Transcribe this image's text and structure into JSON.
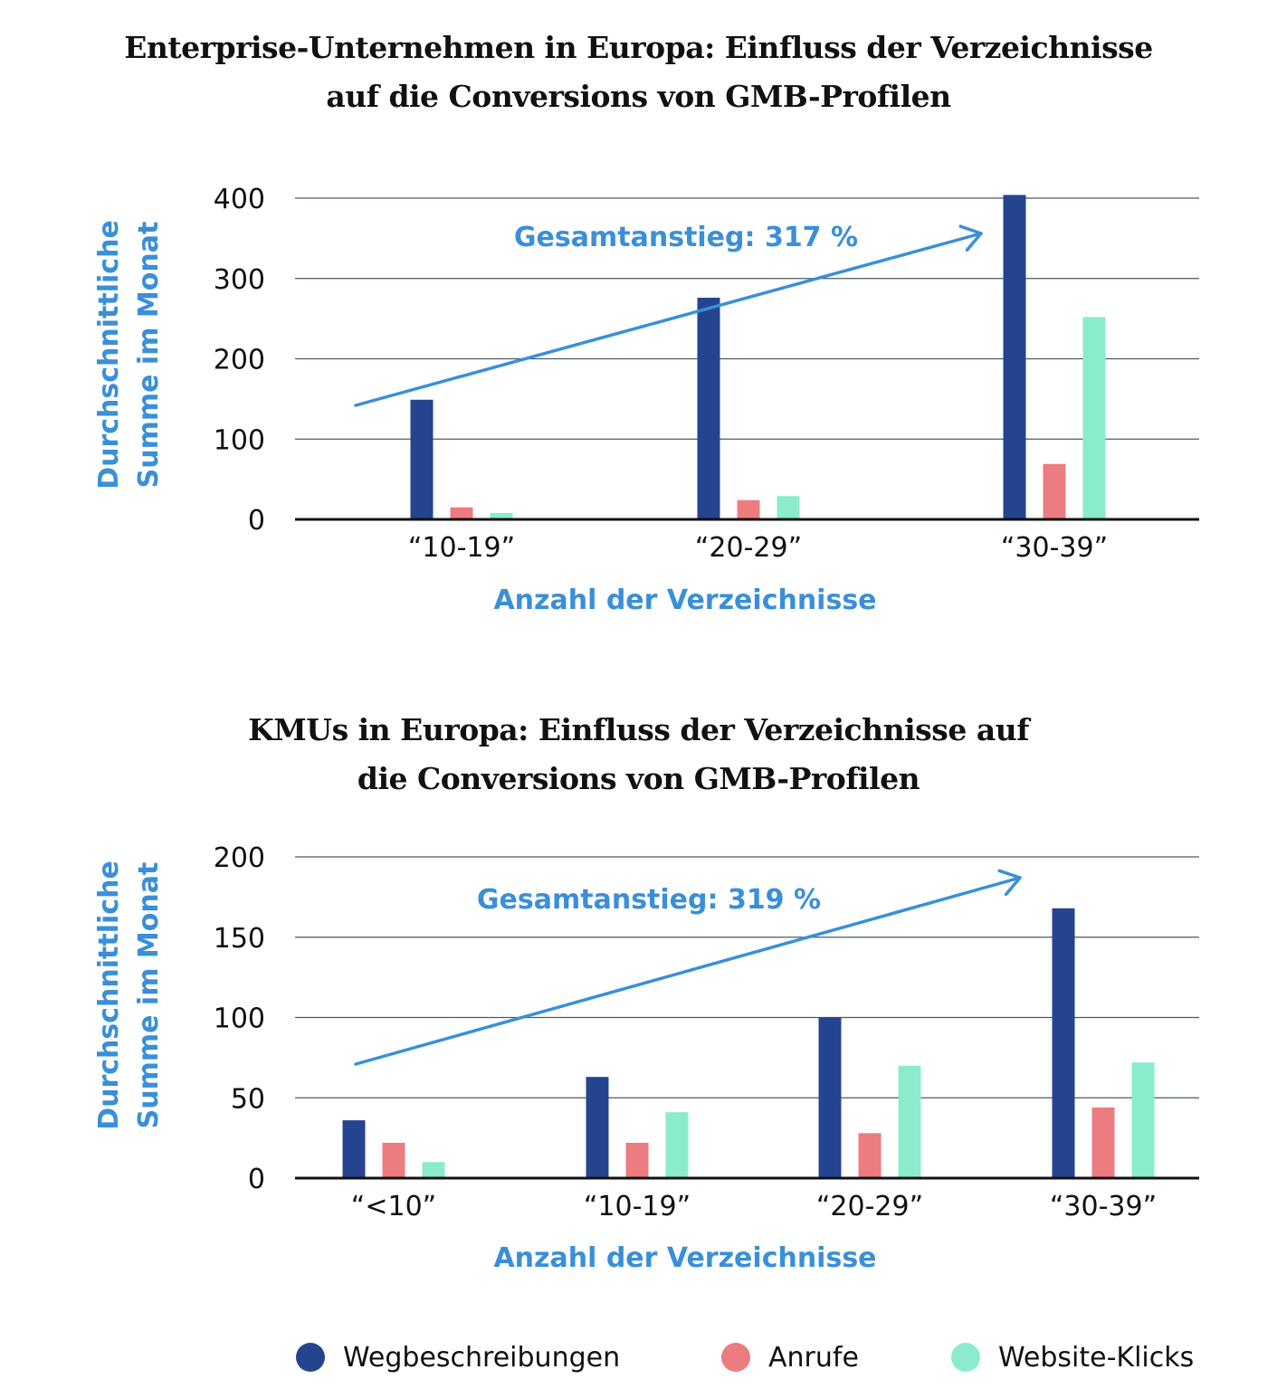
{
  "colors": {
    "wegbeschreibungen": "#24448f",
    "anrufe": "#ec7c80",
    "website_klicks": "#8aeccd",
    "accent": "#3a8fd8",
    "grid": "#4a5a66"
  },
  "legend": {
    "items": [
      {
        "label": "Wegbeschreibungen",
        "color": "#24448f"
      },
      {
        "label": "Anrufe",
        "color": "#ec7c80"
      },
      {
        "label": "Website-Klicks",
        "color": "#8aeccd"
      }
    ]
  },
  "chart_data": [
    {
      "type": "bar",
      "title_lines": [
        "Enterprise-Unternehmen in Europa:  Einfluss der Verzeichnisse",
        "auf die Conversions von GMB-Profilen"
      ],
      "categories": [
        "“10-19”",
        "“20-29”",
        "“30-39”"
      ],
      "series": [
        {
          "name": "Wegbeschreibungen",
          "values": [
            149,
            276,
            404
          ]
        },
        {
          "name": "Anrufe",
          "values": [
            15,
            24,
            69
          ]
        },
        {
          "name": "Website-Klicks",
          "values": [
            8,
            29,
            252
          ]
        }
      ],
      "ylabel_lines": [
        "Durchschnittliche",
        "Summe im Monat"
      ],
      "xlabel": "Anzahl der Verzeichnisse",
      "ylim": [
        0,
        400
      ],
      "yticks": [
        0,
        100,
        200,
        300,
        400
      ],
      "grid": true,
      "annotation": "Gesamtanstieg: 317 %",
      "legend_position": "bottom"
    },
    {
      "type": "bar",
      "title_lines": [
        "KMUs in Europa: Einfluss der Verzeichnisse auf",
        "die Conversions von GMB-Profilen"
      ],
      "categories": [
        "“<10”",
        "“10-19”",
        "“20-29”",
        "“30-39”"
      ],
      "series": [
        {
          "name": "Wegbeschreibungen",
          "values": [
            36,
            63,
            100,
            168
          ]
        },
        {
          "name": "Anrufe",
          "values": [
            22,
            22,
            28,
            44
          ]
        },
        {
          "name": "Website-Klicks",
          "values": [
            10,
            41,
            70,
            72
          ]
        }
      ],
      "ylabel_lines": [
        "Durchschnittliche",
        "Summe im Monat"
      ],
      "xlabel": "Anzahl der Verzeichnisse",
      "ylim": [
        0,
        200
      ],
      "yticks": [
        0,
        50,
        100,
        150,
        200
      ],
      "grid": true,
      "annotation": "Gesamtanstieg: 319 %",
      "legend_position": "bottom"
    }
  ]
}
